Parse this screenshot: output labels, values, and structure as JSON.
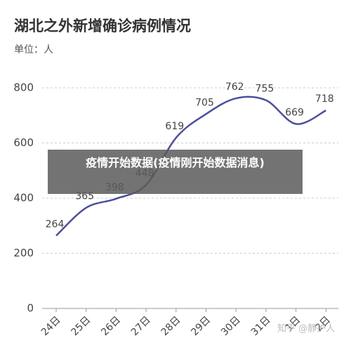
{
  "chart_data": {
    "type": "line",
    "title": "湖北之外新增确诊病例情况",
    "subtitle": "单位：人",
    "categories": [
      "24日",
      "25日",
      "26日",
      "27日",
      "28日",
      "29日",
      "30日",
      "31日",
      "1日",
      "2日"
    ],
    "values": [
      264,
      365,
      398,
      448,
      619,
      705,
      762,
      755,
      669,
      718
    ],
    "color": "#4b4f9c",
    "ylim": [
      0,
      800
    ],
    "yticks": [
      0,
      200,
      400,
      600,
      800
    ],
    "grid": true
  },
  "overlay_caption": "疫情开始数据(疫情刚开始数据消息)",
  "watermark": "知乎 @静护人"
}
